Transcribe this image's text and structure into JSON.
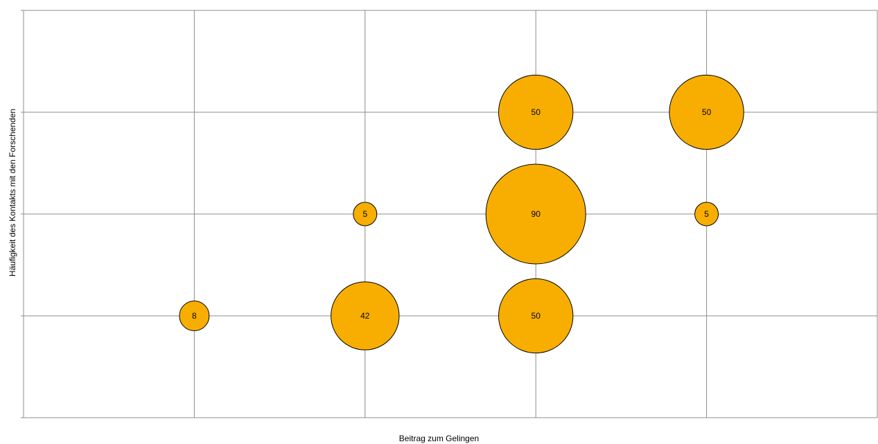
{
  "chart_data": {
    "type": "bubble",
    "title": "",
    "xlabel": "Beitrag zum Gelingen",
    "ylabel": "Häufigkeit des Kontakts mit den Forschenden",
    "xlim": [
      0,
      5
    ],
    "ylim": [
      0,
      4
    ],
    "grid": true,
    "bubble_color": "#F8AE00",
    "points": [
      {
        "x": 1,
        "y": 1,
        "size": 8
      },
      {
        "x": 2,
        "y": 1,
        "size": 42
      },
      {
        "x": 3,
        "y": 1,
        "size": 50
      },
      {
        "x": 2,
        "y": 2,
        "size": 5
      },
      {
        "x": 3,
        "y": 2,
        "size": 90
      },
      {
        "x": 4,
        "y": 2,
        "size": 5
      },
      {
        "x": 3,
        "y": 3,
        "size": 50
      },
      {
        "x": 4,
        "y": 3,
        "size": 50
      }
    ]
  }
}
